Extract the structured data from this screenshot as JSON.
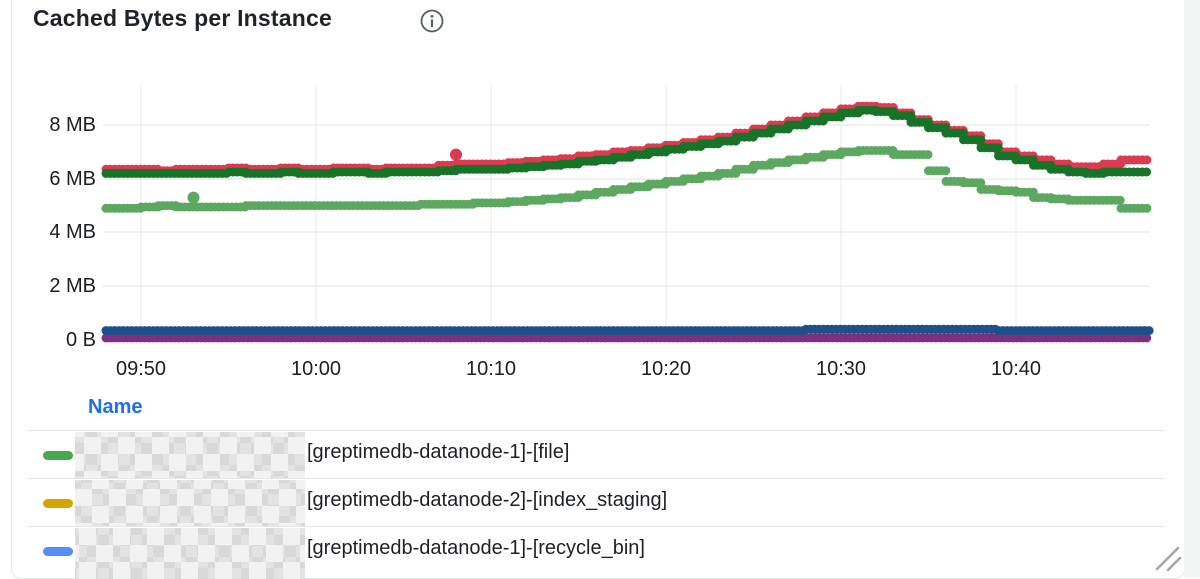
{
  "panel": {
    "title": "Cached Bytes per Instance",
    "info_icon": "info-circle-icon"
  },
  "y_axis": {
    "ticks": [
      "8 MB",
      "6 MB",
      "4 MB",
      "2 MB",
      "0 B"
    ]
  },
  "x_axis": {
    "ticks": [
      "09:50",
      "10:00",
      "10:10",
      "10:20",
      "10:30",
      "10:40"
    ]
  },
  "legend": {
    "header": "Name",
    "rows": [
      {
        "color_name": "green",
        "color_hex": "#4aa64f",
        "redacted_prefix": true,
        "label": "[greptimedb-datanode-1]-[file]"
      },
      {
        "color_name": "yellow",
        "color_hex": "#d6a500",
        "redacted_prefix": true,
        "label": "[greptimedb-datanode-2]-[index_staging]"
      },
      {
        "color_name": "blue",
        "color_hex": "#568ef4",
        "redacted_prefix": true,
        "label": "[greptimedb-datanode-1]-[recycle_bin]"
      }
    ]
  },
  "chart_data": {
    "type": "line",
    "style": "dotted-step-scatter",
    "title": "Cached Bytes per Instance",
    "unit": "MB",
    "ylim": [
      0,
      9.6
    ],
    "y_tick_values_mb": [
      8,
      6,
      4,
      2,
      0
    ],
    "x_tick_labels": [
      "09:50",
      "10:00",
      "10:10",
      "10:20",
      "10:30",
      "10:40"
    ],
    "start_time": "09:48",
    "end_time": "10:48",
    "step_minutes": 1,
    "grid": true,
    "legend_position": "bottom-table",
    "series": [
      {
        "name": "purple-series",
        "color": "#7d2f80",
        "values": [
          0.08,
          0.08,
          0.08,
          0.08,
          0.08,
          0.08,
          0.08,
          0.08,
          0.08,
          0.08,
          0.08,
          0.08,
          0.08,
          0.08,
          0.08,
          0.08,
          0.08,
          0.08,
          0.08,
          0.08,
          0.08,
          0.08,
          0.08,
          0.08,
          0.08,
          0.08,
          0.08,
          0.08,
          0.08,
          0.08,
          0.08,
          0.08,
          0.08,
          0.08,
          0.08,
          0.08,
          0.08,
          0.08,
          0.08,
          0.08,
          0.08,
          0.08,
          0.08,
          0.08,
          0.08,
          0.08,
          0.08,
          0.08,
          0.08,
          0.08,
          0.08,
          0.08,
          0.08,
          0.08,
          0.08,
          0.08,
          0.08,
          0.08,
          0.08,
          0.08
        ]
      },
      {
        "name": "navy-series",
        "color": "#1d4f8a",
        "values": [
          0.35,
          0.35,
          0.35,
          0.35,
          0.35,
          0.35,
          0.35,
          0.35,
          0.35,
          0.35,
          0.35,
          0.35,
          0.35,
          0.35,
          0.35,
          0.35,
          0.35,
          0.35,
          0.35,
          0.35,
          0.35,
          0.35,
          0.35,
          0.35,
          0.35,
          0.35,
          0.35,
          0.35,
          0.35,
          0.35,
          0.35,
          0.35,
          0.35,
          0.35,
          0.35,
          0.35,
          0.35,
          0.35,
          0.35,
          0.35,
          0.4,
          0.4,
          0.4,
          0.4,
          0.4,
          0.4,
          0.4,
          0.4,
          0.4,
          0.4,
          0.4,
          0.35,
          0.35,
          0.35,
          0.35,
          0.35,
          0.35,
          0.35,
          0.35,
          0.35
        ]
      },
      {
        "name": "red-series",
        "color": "#dc3a4f",
        "values": [
          6.35,
          6.35,
          6.35,
          6.3,
          6.35,
          6.35,
          6.35,
          6.4,
          6.35,
          6.35,
          6.4,
          6.35,
          6.35,
          6.4,
          6.4,
          6.35,
          6.4,
          6.4,
          6.4,
          6.5,
          6.55,
          6.55,
          6.55,
          6.6,
          6.65,
          6.7,
          6.75,
          6.85,
          6.9,
          7.0,
          7.05,
          7.15,
          7.25,
          7.35,
          7.45,
          7.55,
          7.7,
          7.85,
          8.0,
          8.15,
          8.3,
          8.45,
          8.6,
          8.7,
          8.65,
          8.45,
          8.2,
          8.0,
          7.8,
          7.6,
          7.3,
          7.0,
          6.85,
          6.7,
          6.55,
          6.45,
          6.45,
          6.55,
          6.7,
          6.7
        ]
      },
      {
        "name": "dark-green-series",
        "color": "#177327",
        "values": [
          6.2,
          6.2,
          6.2,
          6.2,
          6.2,
          6.2,
          6.2,
          6.25,
          6.2,
          6.2,
          6.25,
          6.2,
          6.2,
          6.25,
          6.25,
          6.2,
          6.25,
          6.25,
          6.25,
          6.3,
          6.35,
          6.35,
          6.35,
          6.4,
          6.45,
          6.5,
          6.55,
          6.65,
          6.7,
          6.8,
          6.9,
          7.0,
          7.1,
          7.2,
          7.3,
          7.4,
          7.55,
          7.7,
          7.85,
          8.0,
          8.15,
          8.3,
          8.45,
          8.55,
          8.5,
          8.35,
          8.1,
          7.9,
          7.7,
          7.45,
          7.15,
          6.85,
          6.7,
          6.5,
          6.35,
          6.25,
          6.2,
          6.25,
          6.25,
          6.25
        ]
      },
      {
        "name": "light-green-series",
        "color": "#5da861",
        "values": [
          4.9,
          4.9,
          4.95,
          5.0,
          4.95,
          4.95,
          4.95,
          4.95,
          5.0,
          5.0,
          5.0,
          5.0,
          5.0,
          5.0,
          5.0,
          5.0,
          5.0,
          5.0,
          5.05,
          5.05,
          5.05,
          5.1,
          5.1,
          5.15,
          5.2,
          5.25,
          5.3,
          5.4,
          5.5,
          5.6,
          5.7,
          5.8,
          5.9,
          6.0,
          6.1,
          6.2,
          6.35,
          6.5,
          6.6,
          6.7,
          6.8,
          6.9,
          7.0,
          7.05,
          7.05,
          6.9,
          6.9,
          6.3,
          5.9,
          5.85,
          5.6,
          5.55,
          5.5,
          5.3,
          5.25,
          5.2,
          5.2,
          5.2,
          4.9,
          4.9
        ]
      }
    ],
    "outlier_points": [
      {
        "series": "red-series",
        "color": "#dc3a4f",
        "time": "10:08",
        "value_mb": 6.9
      },
      {
        "series": "light-green-series",
        "color": "#5da861",
        "time": "09:53",
        "value_mb": 5.3
      }
    ]
  }
}
